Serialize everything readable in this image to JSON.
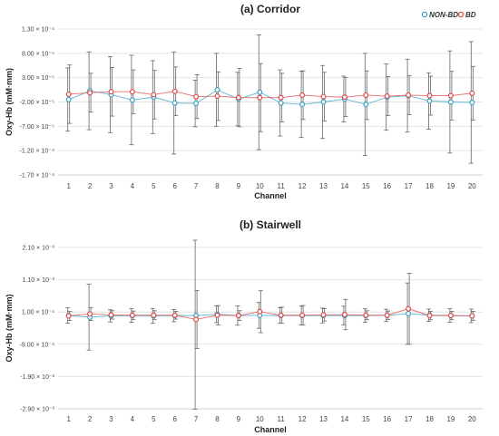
{
  "chart_data": [
    {
      "type": "line",
      "title": "(a) Corridor",
      "xlabel": "Channel",
      "ylabel": "Oxy-Hb (mM·mm)",
      "categories": [
        "1",
        "2",
        "3",
        "4",
        "5",
        "6",
        "7",
        "8",
        "9",
        "10",
        "11",
        "12",
        "13",
        "14",
        "15",
        "16",
        "17",
        "18",
        "19",
        "20"
      ],
      "ylim": [
        -0.00017,
        0.00013
      ],
      "yticks": [
        0.00013,
        8e-05,
        3e-05,
        -2e-05,
        -7e-05,
        -0.00012,
        -0.00017
      ],
      "ytick_labels": [
        "1.30 × 10⁻⁴",
        "8.00 × 10⁻⁵",
        "3.00 × 10⁻⁵",
        "-2.00 × 10⁻⁵",
        "-7.00 × 10⁻⁵",
        "-1.20 × 10⁻⁴",
        "-1.70 × 10⁻⁴"
      ],
      "legend_position": "top-right",
      "grid": "horizontal",
      "series": [
        {
          "name": "NON-BD",
          "color": "#3aa3c4",
          "values": [
            -1.5e-05,
            3e-06,
            -5e-06,
            -1.6e-05,
            -1e-05,
            -2.2e-05,
            -2.3e-05,
            5e-06,
            -1.4e-05,
            0,
            -2.2e-05,
            -2.5e-05,
            -2e-05,
            -1.4e-05,
            -2.5e-05,
            -1e-05,
            -7e-06,
            -1.8e-05,
            -2e-05,
            -2.1e-05
          ],
          "errors": [
            6.5e-05,
            8e-05,
            7.8e-05,
            9.2e-05,
            7.5e-05,
            0.000105,
            4.8e-05,
            7.5e-05,
            5.5e-05,
            0.000118,
            6.8e-05,
            6.8e-05,
            7.5e-05,
            4.7e-05,
            0.000105,
            6.8e-05,
            7.5e-05,
            5.8e-05,
            0.000105,
            0.000125
          ]
        },
        {
          "name": "BD",
          "color": "#e04a4a",
          "values": [
            -4e-06,
            -1e-06,
            1e-06,
            1e-06,
            -5e-06,
            2e-06,
            -9e-06,
            -8e-06,
            -1.1e-05,
            -1.1e-05,
            -1.1e-05,
            -6e-06,
            -9e-06,
            -1e-05,
            -6e-06,
            -8e-06,
            -6e-06,
            -7e-06,
            -7e-06,
            -2e-06
          ],
          "errors": [
            6e-05,
            4e-05,
            5e-05,
            4.5e-05,
            5e-05,
            5e-05,
            4.5e-05,
            5e-05,
            6e-05,
            7e-05,
            5e-05,
            5e-05,
            5e-05,
            4e-05,
            5e-05,
            4e-05,
            4e-05,
            4e-05,
            5e-05,
            5.5e-05
          ]
        }
      ]
    },
    {
      "type": "line",
      "title": "(b) Stairwell",
      "xlabel": "Channel",
      "ylabel": "Oxy-Hb (mM·mm)",
      "categories": [
        "1",
        "2",
        "3",
        "4",
        "5",
        "6",
        "7",
        "8",
        "9",
        "10",
        "11",
        "12",
        "13",
        "14",
        "15",
        "16",
        "17",
        "18",
        "19",
        "20"
      ],
      "ylim": [
        -0.0029,
        0.0021
      ],
      "yticks": [
        0.0021,
        0.0011,
        0.0001,
        -0.0009,
        -0.0019,
        -0.0029
      ],
      "ytick_labels": [
        "2.10 × 10⁻³",
        "1.10 × 10⁻³",
        "1.00 × 10⁻⁴",
        "-9.00 × 10⁻⁴",
        "-1.90 × 10⁻³",
        "-2.90 × 10⁻³"
      ],
      "grid": "horizontal",
      "series": [
        {
          "name": "NON-BD",
          "color": "#3aa3c4",
          "values": [
            -1e-05,
            -6e-05,
            -2e-05,
            -1e-05,
            -2e-05,
            -1e-05,
            -1e-05,
            3e-05,
            -1e-05,
            -5e-06,
            -1e-05,
            -1e-05,
            -1e-05,
            -1e-05,
            -1e-05,
            -5e-06,
            5e-05,
            0,
            -1e-05,
            -2e-05
          ],
          "errors": [
            0.00024,
            0.00102,
            0.00019,
            0.00021,
            0.00023,
            0.00019,
            0.0029,
            0.00026,
            0.0003,
            0.0004,
            0.00024,
            0.00029,
            0.00023,
            0.00029,
            0.00021,
            0.00019,
            0.00095,
            0.00019,
            0.00021,
            0.00021
          ]
        },
        {
          "name": "BD",
          "color": "#e04a4a",
          "values": [
            -2e-05,
            4e-05,
            1e-05,
            0,
            0,
            0,
            -0.00013,
            0,
            -1e-05,
            0.00011,
            0,
            0,
            1e-05,
            2e-05,
            0,
            0,
            0.0002,
            -1e-05,
            -1e-05,
            -2e-05
          ],
          "errors": [
            0.00014,
            0.0002,
            0.00013,
            0.00013,
            0.00014,
            0.00012,
            0.0009,
            0.0003,
            0.00015,
            0.00065,
            0.00025,
            0.0003,
            0.00019,
            0.00047,
            0.00014,
            0.00013,
            0.0011,
            0.00013,
            0.00013,
            0.00014
          ]
        }
      ]
    }
  ]
}
